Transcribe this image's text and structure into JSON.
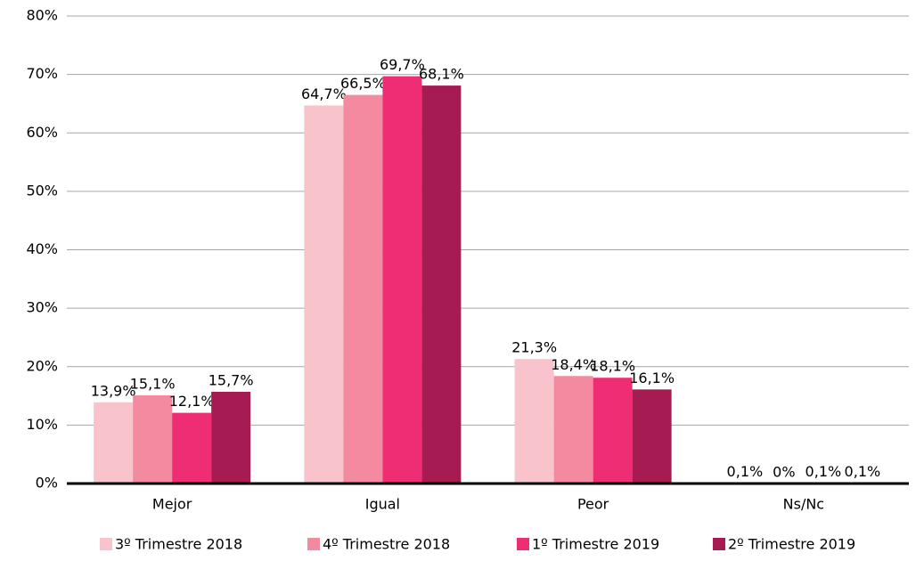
{
  "chart_data": {
    "type": "bar",
    "categories": [
      "Mejor",
      "Igual",
      "Peor",
      "Ns/Nc"
    ],
    "series": [
      {
        "name": "3º Trimestre 2018",
        "color": "#f8c3cb",
        "values": [
          13.9,
          64.7,
          21.3,
          0.1
        ],
        "value_labels": [
          "13,9%",
          "64,7%",
          "21,3%",
          "0,1%"
        ]
      },
      {
        "name": "4º Trimestre 2018",
        "color": "#f48aa0",
        "values": [
          15.1,
          66.5,
          18.4,
          0
        ],
        "value_labels": [
          "15,1%",
          "66,5%",
          "18,4%",
          "0%"
        ]
      },
      {
        "name": "1º Trimestre 2019",
        "color": "#ee2d74",
        "values": [
          12.1,
          69.7,
          18.1,
          0.1
        ],
        "value_labels": [
          "12,1%",
          "69,7%",
          "18,1%",
          "0,1%"
        ]
      },
      {
        "name": "2º Trimestre 2019",
        "color": "#a61c52",
        "values": [
          15.7,
          68.1,
          16.1,
          0.1
        ],
        "value_labels": [
          "15,7%",
          "68,1%",
          "16,1%",
          "0,1%"
        ]
      }
    ],
    "ylim": [
      0,
      80
    ],
    "yticks": [
      {
        "value": 0,
        "label": "0%"
      },
      {
        "value": 10,
        "label": "10%"
      },
      {
        "value": 20,
        "label": "20%"
      },
      {
        "value": 30,
        "label": "30%"
      },
      {
        "value": 40,
        "label": "40%"
      },
      {
        "value": 50,
        "label": "50%"
      },
      {
        "value": 60,
        "label": "60%"
      },
      {
        "value": 70,
        "label": "70%"
      },
      {
        "value": 80,
        "label": "80%"
      }
    ],
    "grid": true,
    "legend": "bottom"
  }
}
